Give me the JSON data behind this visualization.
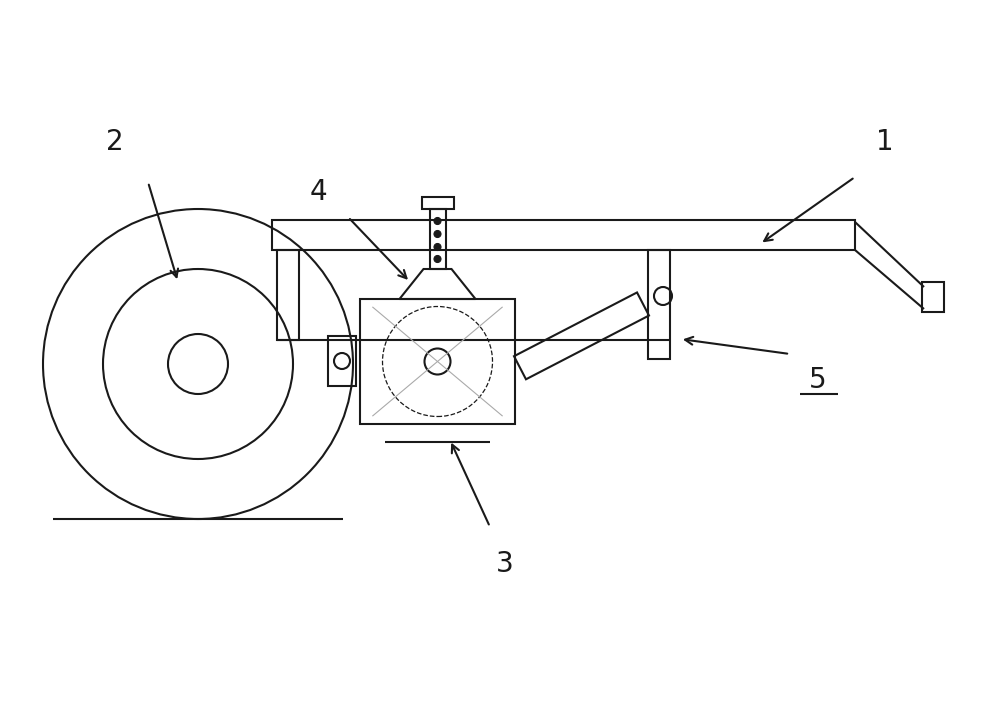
{
  "bg_color": "#ffffff",
  "line_color": "#1a1a1a",
  "lw": 1.5,
  "lw_thin": 0.9,
  "fig_width": 10.0,
  "fig_height": 7.12,
  "label_fs": 20
}
